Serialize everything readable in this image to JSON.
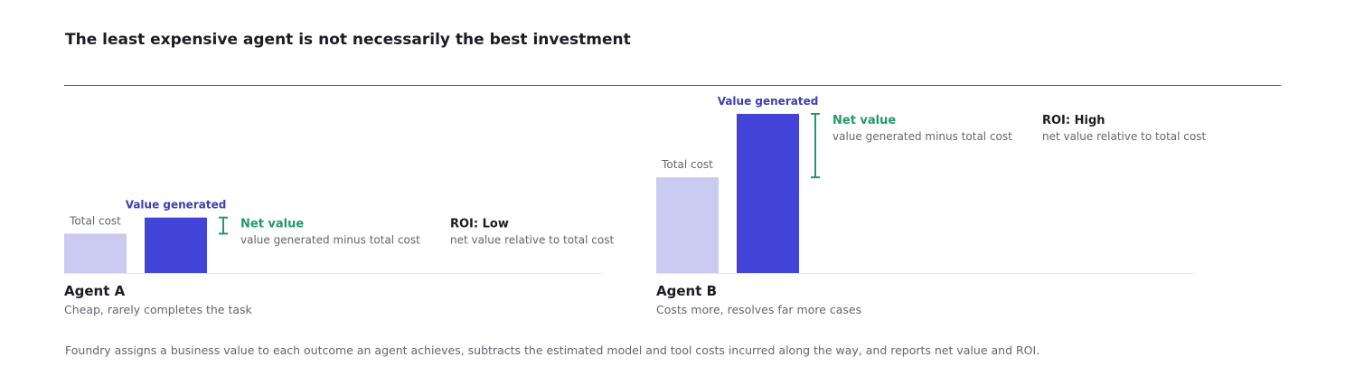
{
  "title": "The least expensive agent is not necessarily the best investment",
  "caption": "Foundry assigns a business value to each outcome an agent achieves, subtracts the estimated model and tool costs incurred along the way, and reports net value and ROI.",
  "colors": {
    "cost": "#cbcaf1",
    "value": "#4244d8",
    "value_label": "#3c3fb0",
    "net": "#1f9a6a",
    "muted": "#66666e",
    "text": "#1c1c22",
    "baseline": "#e6e6ea"
  },
  "chart_data": [
    {
      "type": "bar",
      "agent": "Agent A",
      "description": "Cheap, rarely completes the task",
      "categories": [
        "Total cost",
        "Value generated"
      ],
      "values": [
        44,
        62
      ],
      "ylim": [
        0,
        180
      ],
      "annotations": {
        "net_title": "Net value",
        "net_desc": "value generated minus total cost",
        "roi_title": "ROI: Low",
        "roi_desc": "net value relative to total cost"
      }
    },
    {
      "type": "bar",
      "agent": "Agent B",
      "description": "Costs more, resolves far more cases",
      "categories": [
        "Total cost",
        "Value generated"
      ],
      "values": [
        107,
        178
      ],
      "ylim": [
        0,
        180
      ],
      "annotations": {
        "net_title": "Net value",
        "net_desc": "value generated minus total cost",
        "roi_title": "ROI: High",
        "roi_desc": "net value relative to total cost"
      }
    }
  ]
}
